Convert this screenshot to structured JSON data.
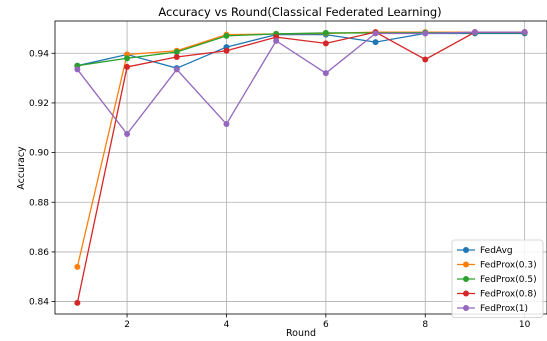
{
  "chart_data": {
    "type": "line",
    "title": "Accuracy vs Round(Classical Federated Learning)",
    "xlabel": "Round",
    "ylabel": "Accuracy",
    "xlim": [
      0.55,
      10.45
    ],
    "ylim": [
      0.835,
      0.953
    ],
    "xticks": [
      2,
      4,
      6,
      8,
      10
    ],
    "yticks": [
      0.84,
      0.86,
      0.88,
      0.9,
      0.92,
      0.94
    ],
    "ytick_labels": [
      "0.84",
      "0.86",
      "0.88",
      "0.90",
      "0.92",
      "0.94"
    ],
    "grid": true,
    "legend_position": "lower-right",
    "x": [
      1,
      2,
      3,
      4,
      5,
      6,
      7,
      8,
      9,
      10
    ],
    "series": [
      {
        "name": "FedAvg",
        "color": "#1f77b4",
        "values": [
          0.935,
          0.9395,
          0.934,
          0.9425,
          0.9475,
          0.9475,
          0.9445,
          0.948,
          0.948,
          0.948
        ]
      },
      {
        "name": "FedProx(0.3)",
        "color": "#ff7f0e",
        "values": [
          0.854,
          0.9395,
          0.941,
          0.9475,
          0.9478,
          0.948,
          0.9485,
          0.9485,
          0.9485,
          0.9485
        ]
      },
      {
        "name": "FedProx(0.5)",
        "color": "#2ca02c",
        "values": [
          0.935,
          0.938,
          0.9405,
          0.947,
          0.9478,
          0.9482,
          0.9482,
          0.9483,
          0.9483,
          0.9483
        ]
      },
      {
        "name": "FedProx(0.8)",
        "color": "#d62728",
        "values": [
          0.8395,
          0.9345,
          0.9385,
          0.941,
          0.9465,
          0.944,
          0.9485,
          0.9375,
          0.9485,
          0.9485
        ]
      },
      {
        "name": "FedProx(1)",
        "color": "#9467bd",
        "values": [
          0.9335,
          0.9075,
          0.9335,
          0.9115,
          0.945,
          0.932,
          0.948,
          0.948,
          0.9485,
          0.9485
        ]
      }
    ]
  }
}
